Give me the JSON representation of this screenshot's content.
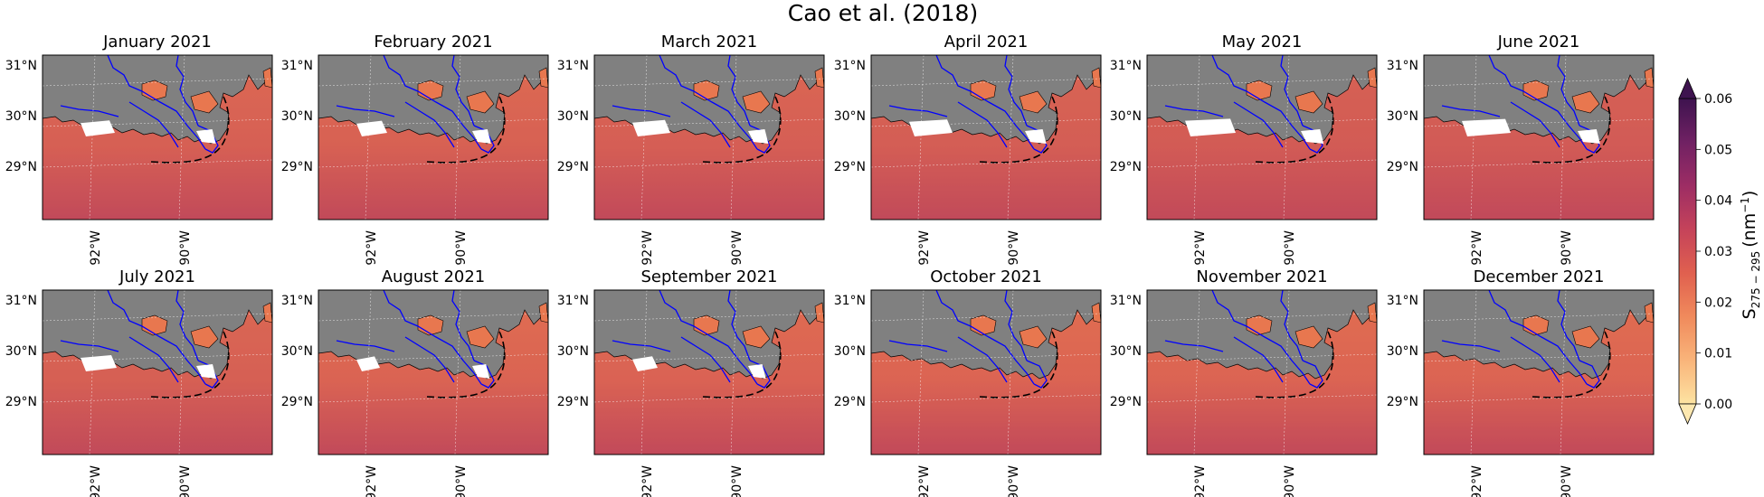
{
  "figure": {
    "title": "Cao et al. (2018)"
  },
  "panels": [
    {
      "title": "January 2021",
      "white_patch_level": 0.45
    },
    {
      "title": "February 2021",
      "white_patch_level": 0.35
    },
    {
      "title": "March 2021",
      "white_patch_level": 0.55
    },
    {
      "title": "April 2021",
      "white_patch_level": 0.7
    },
    {
      "title": "May 2021",
      "white_patch_level": 0.9
    },
    {
      "title": "June 2021",
      "white_patch_level": 0.85
    },
    {
      "title": "July 2021",
      "white_patch_level": 0.5
    },
    {
      "title": "August 2021",
      "white_patch_level": 0.15
    },
    {
      "title": "September 2021",
      "white_patch_level": 0.2
    },
    {
      "title": "October 2021",
      "white_patch_level": 0.05
    },
    {
      "title": "November 2021",
      "white_patch_level": 0.05
    },
    {
      "title": "December 2021",
      "white_patch_level": 0.05
    }
  ],
  "axes": {
    "lat_ticks": [
      "31°N",
      "30°N",
      "29°N"
    ],
    "lon_ticks": [
      "92°W",
      "90°W"
    ]
  },
  "colorbar": {
    "label_main": "S",
    "label_sub": "275 − 295",
    "label_unit": "(nm",
    "label_exp": "−1",
    "label_close": ")",
    "ticks": [
      "0.06",
      "0.05",
      "0.04",
      "0.03",
      "0.02",
      "0.01",
      "0.00"
    ],
    "range": [
      0.0,
      0.06
    ],
    "extend": "both",
    "colormap": "magma_r-like",
    "colors": [
      "#fde3a2",
      "#f9b47a",
      "#f08a5c",
      "#e0604f",
      "#c5435a",
      "#9d2d64",
      "#702163",
      "#3e134f"
    ]
  },
  "map_colors": {
    "land": "#808080",
    "river": "#0000ff",
    "water_base": "#e07050",
    "water_deep": "#c24a5a"
  }
}
